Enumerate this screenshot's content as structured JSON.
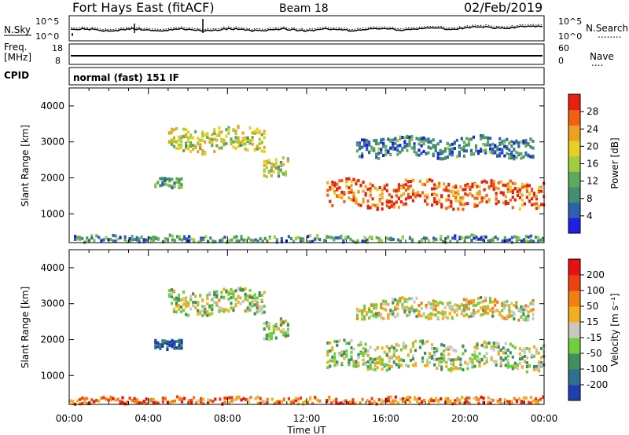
{
  "header": {
    "title": "Fort Hays East (fitACF)",
    "beam": "Beam 18",
    "date": "02/Feb/2019"
  },
  "strip_labels": {
    "nsky": "N.Sky",
    "nsearch": "N.Search",
    "nsearch_dots": "........",
    "freq_line1": "Freq.",
    "freq_line2": "[MHz]",
    "nave": "Nave",
    "nave_dots": "....",
    "cpid": "CPID",
    "cpid_value": "normal (fast) 151 IF",
    "noise_left_ticks": [
      "10^5",
      "10^0"
    ],
    "noise_right_ticks": [
      "10^5",
      "10^0"
    ],
    "freq_left_ticks": [
      "18",
      "8"
    ],
    "freq_right_ticks": [
      "60",
      "0"
    ]
  },
  "chart_data": [
    {
      "type": "heatmap",
      "panel": "power",
      "ylabel": "Slant Range [km]",
      "xlabel": "Time UT",
      "ylim": [
        200,
        4500
      ],
      "xlim": [
        0,
        24
      ],
      "yticks": [
        1000,
        2000,
        3000,
        4000
      ],
      "colorbar": {
        "label": "Power [dB]",
        "ticks": [
          4,
          8,
          12,
          16,
          20,
          24,
          28
        ],
        "range": [
          0,
          32
        ],
        "colors": [
          "#1f1fe8",
          "#2f5fb0",
          "#3f8f70",
          "#5fa85f",
          "#9fcf3f",
          "#e8d020",
          "#f0a020",
          "#f06010",
          "#e82010"
        ]
      },
      "echo_regions": [
        {
          "t0": 5.0,
          "t1": 9.8,
          "r_mid": 3050,
          "r_half": 330,
          "level": 0.55
        },
        {
          "t0": 9.8,
          "t1": 11.0,
          "r_mid": 2300,
          "r_half": 260,
          "level": 0.5
        },
        {
          "t0": 4.3,
          "t1": 5.7,
          "r_mid": 1880,
          "r_half": 130,
          "level": 0.35
        },
        {
          "t0": 13.0,
          "t1": 24.0,
          "r_mid": 1550,
          "r_half": 360,
          "level": 0.85
        },
        {
          "t0": 14.5,
          "t1": 23.5,
          "r_mid": 2850,
          "r_half": 260,
          "level": 0.25
        },
        {
          "t0": 0.0,
          "t1": 24.0,
          "r_mid": 300,
          "r_half": 90,
          "level": 0.3
        }
      ]
    },
    {
      "type": "heatmap",
      "panel": "velocity",
      "ylabel": "Slant Range [km]",
      "xlabel": "Time UT",
      "ylim": [
        200,
        4500
      ],
      "xlim": [
        0,
        24
      ],
      "yticks": [
        1000,
        2000,
        3000,
        4000
      ],
      "xticks": [
        "00:00",
        "04:00",
        "08:00",
        "12:00",
        "16:00",
        "20:00",
        "00:00"
      ],
      "colorbar": {
        "label": "Velocity [m s⁻¹]",
        "ticks": [
          200,
          100,
          50,
          15,
          -15,
          -50,
          -100,
          -200
        ],
        "colors": [
          "#1f3fb0",
          "#2f6f90",
          "#3f8f5f",
          "#6fcf3f",
          "#c8c8c0",
          "#f0b020",
          "#f08010",
          "#f04010",
          "#e81010"
        ]
      },
      "echo_regions": [
        {
          "t0": 5.0,
          "t1": 9.8,
          "r_mid": 3050,
          "r_half": 330,
          "level": 0.45
        },
        {
          "t0": 9.8,
          "t1": 11.0,
          "r_mid": 2300,
          "r_half": 260,
          "level": 0.45
        },
        {
          "t0": 4.3,
          "t1": 5.7,
          "r_mid": 1880,
          "r_half": 130,
          "level": 0.1
        },
        {
          "t0": 13.0,
          "t1": 24.0,
          "r_mid": 1550,
          "r_half": 360,
          "level": 0.45
        },
        {
          "t0": 14.5,
          "t1": 23.5,
          "r_mid": 2850,
          "r_half": 260,
          "level": 0.5
        },
        {
          "t0": 0.0,
          "t1": 24.0,
          "r_mid": 300,
          "r_half": 90,
          "level": 0.75
        }
      ]
    }
  ]
}
